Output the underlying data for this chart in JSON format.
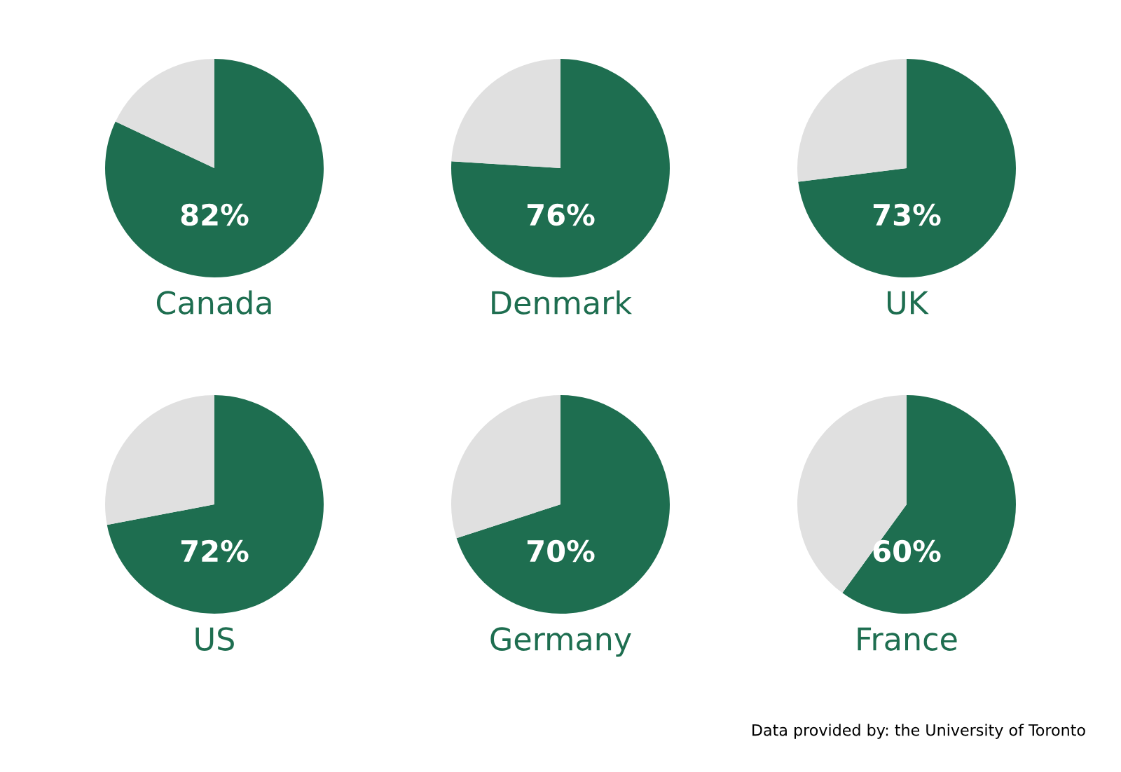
{
  "chart_data": [
    {
      "type": "pie",
      "title": "Canada",
      "categories": [
        null,
        null
      ],
      "values": [
        82,
        18
      ],
      "colors": [
        "#1e6e50",
        "#e0e0e0"
      ],
      "value_labels": [
        "82%",
        null
      ]
    },
    {
      "type": "pie",
      "title": "Denmark",
      "categories": [
        null,
        null
      ],
      "values": [
        76,
        24
      ],
      "colors": [
        "#1e6e50",
        "#e0e0e0"
      ],
      "value_labels": [
        "76%",
        null
      ]
    },
    {
      "type": "pie",
      "title": "UK",
      "categories": [
        null,
        null
      ],
      "values": [
        73,
        27
      ],
      "colors": [
        "#1e6e50",
        "#e0e0e0"
      ],
      "value_labels": [
        "73%",
        null
      ]
    },
    {
      "type": "pie",
      "title": "US",
      "categories": [
        null,
        null
      ],
      "values": [
        72,
        28
      ],
      "colors": [
        "#1e6e50",
        "#e0e0e0"
      ],
      "value_labels": [
        "72%",
        null
      ]
    },
    {
      "type": "pie",
      "title": "Germany",
      "categories": [
        null,
        null
      ],
      "values": [
        70,
        30
      ],
      "colors": [
        "#1e6e50",
        "#e0e0e0"
      ],
      "value_labels": [
        "70%",
        null
      ]
    },
    {
      "type": "pie",
      "title": "France",
      "categories": [
        null,
        null
      ],
      "values": [
        60,
        40
      ],
      "colors": [
        "#1e6e50",
        "#e0e0e0"
      ],
      "value_labels": [
        "60%",
        null
      ],
      "annotations": [
        "Data provided by: the University of Toronto"
      ]
    }
  ]
}
